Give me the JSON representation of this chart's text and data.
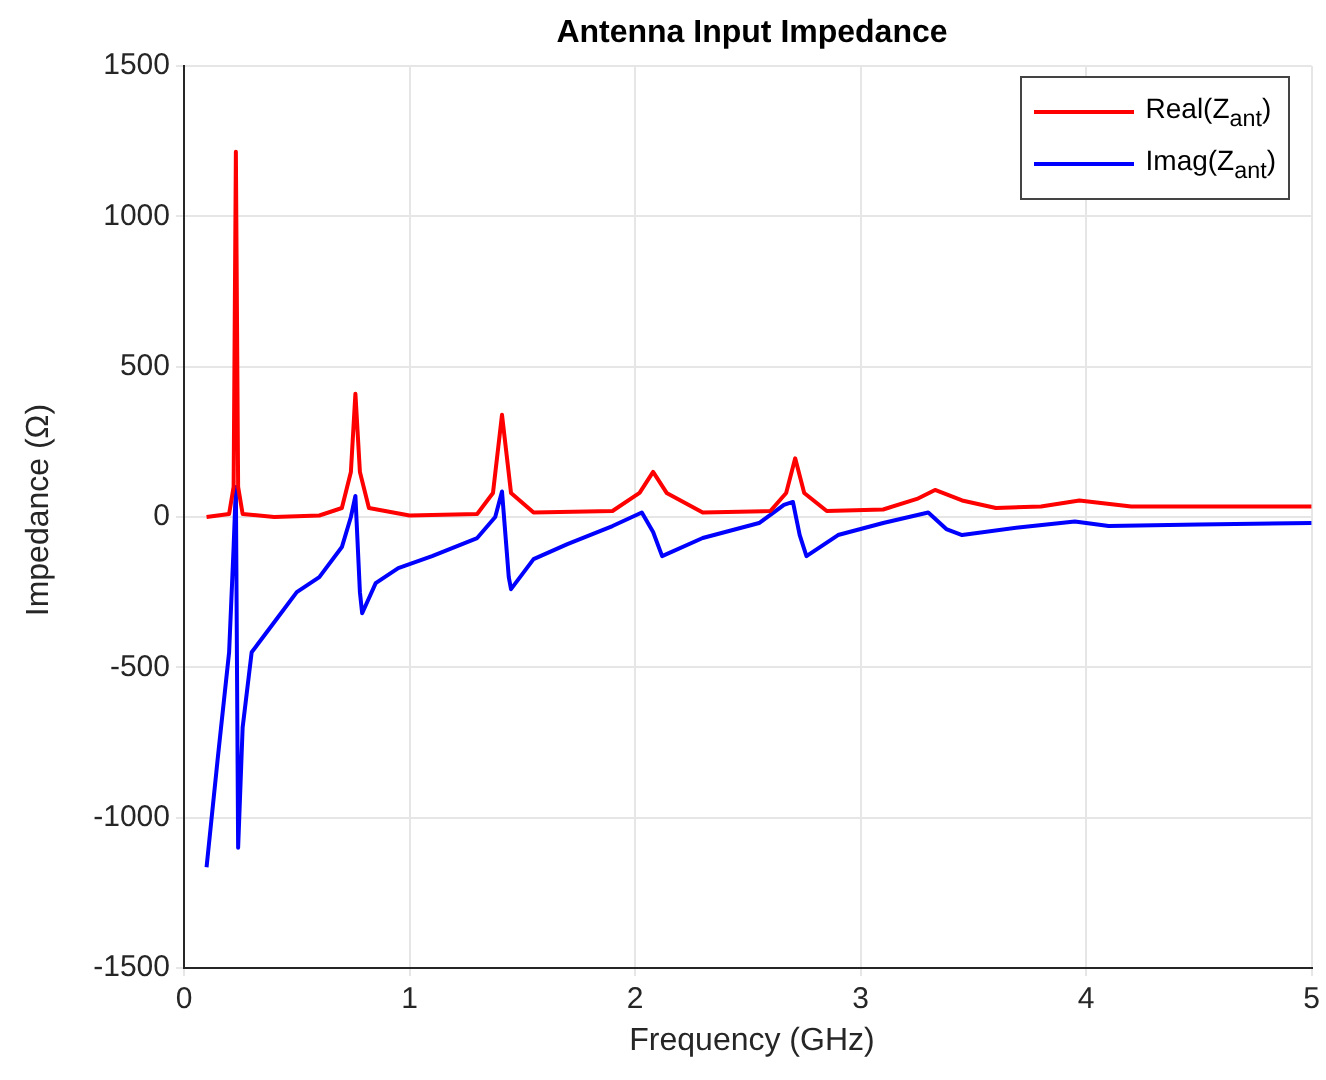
{
  "chart_data": {
    "type": "line",
    "title": "Antenna Input Impedance",
    "xlabel": "Frequency (GHz)",
    "ylabel": "Impedance (Ω)",
    "xlim": [
      0,
      5
    ],
    "xticks": [
      0,
      1,
      2,
      3,
      4,
      5
    ],
    "ylim": [
      -1500,
      1500
    ],
    "yticks": [
      -1500,
      -1000,
      -500,
      0,
      500,
      1000,
      1500
    ],
    "grid": true,
    "legend": "top right",
    "marker": "none",
    "line_style": "solid",
    "series": [
      {
        "name": "Real(Z$_{ant}$)",
        "color": "#ff0000",
        "x": [
          0.1,
          0.2,
          0.22,
          0.23,
          0.24,
          0.26,
          0.4,
          0.6,
          0.7,
          0.74,
          0.76,
          0.78,
          0.82,
          1.0,
          1.3,
          1.37,
          1.41,
          1.45,
          1.55,
          1.9,
          2.02,
          2.08,
          2.14,
          2.3,
          2.6,
          2.67,
          2.71,
          2.75,
          2.85,
          3.1,
          3.25,
          3.33,
          3.45,
          3.6,
          3.8,
          3.97,
          4.2,
          4.6,
          5.0
        ],
        "values": [
          0,
          10,
          100,
          1215,
          100,
          10,
          0,
          5,
          30,
          150,
          410,
          150,
          30,
          5,
          10,
          80,
          340,
          80,
          15,
          20,
          80,
          150,
          80,
          15,
          20,
          80,
          195,
          80,
          20,
          25,
          60,
          90,
          55,
          30,
          35,
          55,
          35,
          35,
          35
        ]
      },
      {
        "name": "Imag(Z$_{ant}$)",
        "color": "#0000ff",
        "x": [
          0.1,
          0.15,
          0.2,
          0.22,
          0.23,
          0.24,
          0.26,
          0.3,
          0.4,
          0.5,
          0.6,
          0.7,
          0.74,
          0.76,
          0.78,
          0.79,
          0.85,
          0.95,
          1.1,
          1.3,
          1.38,
          1.41,
          1.44,
          1.45,
          1.55,
          1.7,
          1.9,
          2.03,
          2.08,
          2.12,
          2.3,
          2.55,
          2.66,
          2.7,
          2.73,
          2.76,
          2.9,
          3.1,
          3.3,
          3.38,
          3.45,
          3.7,
          3.95,
          4.1,
          4.5,
          5.0
        ],
        "values": [
          -1165,
          -800,
          -450,
          -100,
          100,
          -1100,
          -700,
          -450,
          -350,
          -250,
          -200,
          -100,
          0,
          70,
          -250,
          -320,
          -220,
          -170,
          -130,
          -70,
          0,
          85,
          -200,
          -240,
          -140,
          -90,
          -30,
          15,
          -50,
          -130,
          -70,
          -20,
          40,
          50,
          -60,
          -130,
          -60,
          -20,
          15,
          -40,
          -60,
          -35,
          -15,
          -30,
          -25,
          -20
        ]
      }
    ]
  }
}
